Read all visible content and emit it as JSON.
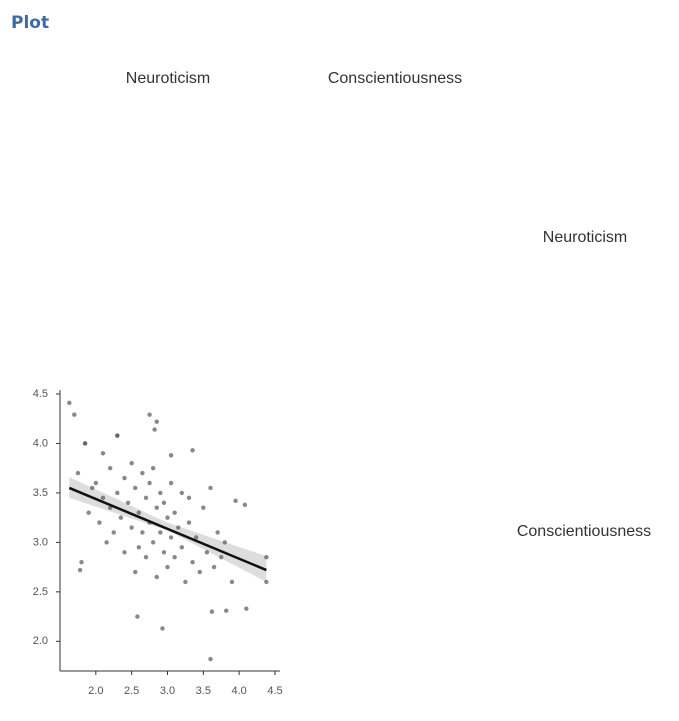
{
  "header": {
    "title": "Plot"
  },
  "matrix_labels": {
    "top": [
      "Neuroticism",
      "Conscientiousness"
    ],
    "right": [
      "Neuroticism",
      "Conscientiousness"
    ]
  },
  "chart_data": {
    "type": "scatter",
    "color": "#555555",
    "x": [
      1.63,
      1.7,
      1.75,
      1.8,
      1.85,
      1.9,
      1.95,
      2.0,
      2.05,
      2.1,
      2.1,
      2.15,
      2.2,
      2.2,
      2.25,
      2.3,
      2.3,
      2.35,
      2.4,
      2.4,
      2.45,
      2.5,
      2.5,
      2.55,
      2.55,
      2.6,
      2.6,
      2.65,
      2.65,
      2.7,
      2.7,
      2.75,
      2.75,
      2.8,
      2.8,
      2.85,
      2.85,
      2.9,
      2.9,
      2.95,
      2.95,
      3.0,
      3.0,
      3.05,
      3.05,
      3.1,
      3.1,
      3.15,
      3.2,
      3.2,
      3.25,
      3.3,
      3.3,
      3.35,
      3.4,
      3.45,
      3.5,
      3.55,
      3.6,
      3.65,
      3.7,
      3.75,
      3.8,
      3.9,
      3.95,
      4.08,
      4.1,
      4.38,
      4.38,
      2.75,
      2.85,
      2.82,
      2.93,
      2.58,
      3.6,
      1.78,
      1.85,
      2.3,
      3.35,
      3.05,
      3.62,
      3.82
    ],
    "values": [
      4.41,
      4.29,
      3.7,
      2.8,
      4.0,
      3.3,
      3.55,
      3.6,
      3.2,
      3.9,
      3.45,
      3.0,
      3.75,
      3.35,
      3.1,
      4.08,
      3.5,
      3.25,
      2.9,
      3.65,
      3.4,
      3.15,
      3.8,
      2.7,
      3.55,
      3.3,
      2.95,
      3.7,
      3.1,
      3.45,
      2.85,
      3.6,
      3.2,
      3.0,
      3.75,
      3.35,
      2.65,
      3.5,
      3.1,
      2.9,
      3.4,
      3.25,
      2.75,
      3.6,
      3.05,
      2.85,
      3.3,
      3.15,
      3.5,
      2.95,
      2.6,
      3.2,
      3.45,
      2.8,
      3.05,
      2.7,
      3.35,
      2.9,
      3.55,
      2.75,
      3.1,
      2.85,
      3.0,
      2.6,
      3.42,
      3.38,
      2.33,
      2.6,
      2.85,
      4.29,
      4.22,
      4.14,
      2.13,
      2.25,
      1.82,
      2.72,
      4.0,
      4.08,
      3.93,
      3.88,
      2.3,
      2.31
    ],
    "fit": {
      "x": [
        1.63,
        4.38
      ],
      "y": [
        3.55,
        2.72
      ],
      "color": "#111111"
    },
    "band": {
      "x": [
        1.63,
        3.0,
        4.38
      ],
      "lower": [
        3.45,
        3.12,
        2.6
      ],
      "upper": [
        3.66,
        3.2,
        2.86
      ],
      "color": "#d4d4d4"
    },
    "xlim": [
      1.5,
      4.57
    ],
    "ylim": [
      1.7,
      4.54
    ],
    "xticks": [
      {
        "value": 2,
        "label": "2.0"
      },
      2.5,
      {
        "value": 3,
        "label": "3.0"
      },
      3.5,
      {
        "value": 4,
        "label": "4.0"
      },
      4.5
    ],
    "yticks": [
      {
        "value": 2,
        "label": "2.0"
      },
      2.5,
      {
        "value": 3,
        "label": "3.0"
      },
      3.5,
      {
        "value": 4,
        "label": "4.0"
      },
      4.5
    ]
  }
}
